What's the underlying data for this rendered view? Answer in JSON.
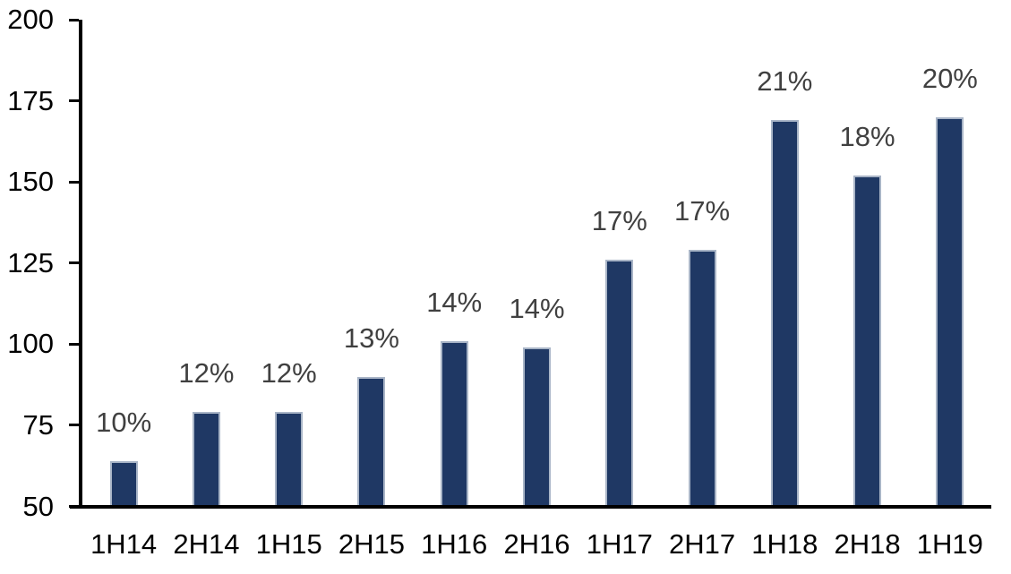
{
  "chart_data": {
    "type": "bar",
    "categories": [
      "1H14",
      "2H14",
      "1H15",
      "2H15",
      "1H16",
      "2H16",
      "1H17",
      "2H17",
      "1H18",
      "2H18",
      "1H19"
    ],
    "values": [
      64,
      79,
      79,
      90,
      101,
      99,
      126,
      129,
      169,
      152,
      170
    ],
    "data_labels": [
      "10%",
      "12%",
      "12%",
      "13%",
      "14%",
      "14%",
      "17%",
      "17%",
      "21%",
      "18%",
      "20%"
    ],
    "title": "",
    "xlabel": "",
    "ylabel": "",
    "ylim": [
      50,
      200
    ],
    "yticks": [
      50,
      75,
      100,
      125,
      150,
      175,
      200
    ],
    "grid": false,
    "legend_position": "none",
    "colors": {
      "bar_fill": "#1F3864",
      "bar_border": "#A9B5C7",
      "axis": "#000000",
      "tick_label": "#000000",
      "data_label": "#404040",
      "background": "#FFFFFF"
    }
  }
}
